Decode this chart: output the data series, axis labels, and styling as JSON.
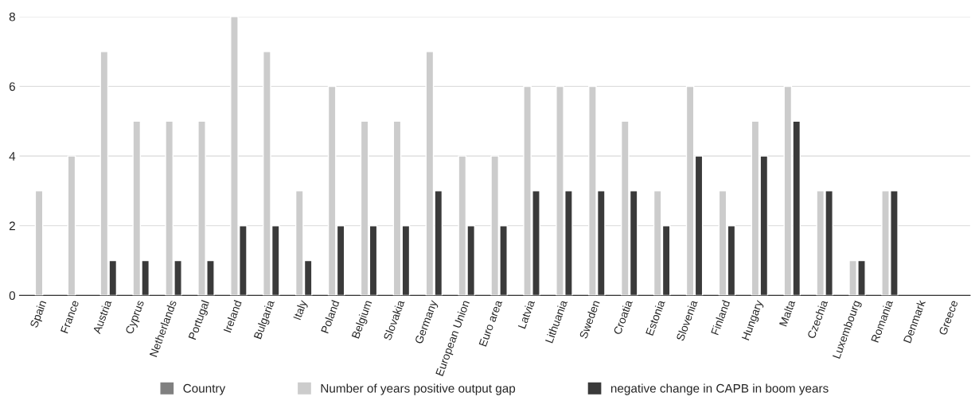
{
  "chart_data": {
    "type": "bar",
    "categories": [
      "Spain",
      "France",
      "Austria",
      "Cyprus",
      "Netherlands",
      "Portugal",
      "Ireland",
      "Bulgaria",
      "Italy",
      "Poland",
      "Belgium",
      "Slovakia",
      "Germany",
      "European Union",
      "Euro area",
      "Latvia",
      "Lithuania",
      "Sweden",
      "Croatia",
      "Estonia",
      "Slovenia",
      "Finland",
      "Hungary",
      "Malta",
      "Czechia",
      "Luxembourg",
      "Romania",
      "Denmark",
      "Greece"
    ],
    "series": [
      {
        "name": "Country",
        "color": "#808080",
        "values": [
          null,
          null,
          null,
          null,
          null,
          null,
          null,
          null,
          null,
          null,
          null,
          null,
          null,
          null,
          null,
          null,
          null,
          null,
          null,
          null,
          null,
          null,
          null,
          null,
          null,
          null,
          null,
          null,
          null
        ]
      },
      {
        "name": "Number of years positive output gap",
        "color": "#cccccc",
        "values": [
          3,
          4,
          7,
          5,
          5,
          5,
          8,
          7,
          3,
          6,
          5,
          5,
          7,
          4,
          4,
          6,
          6,
          6,
          5,
          3,
          6,
          3,
          5,
          6,
          3,
          1,
          3,
          null,
          null
        ]
      },
      {
        "name": "negative change in CAPB in boom years",
        "color": "#3a3a3a",
        "values": [
          null,
          null,
          1,
          1,
          1,
          1,
          2,
          2,
          1,
          2,
          2,
          2,
          3,
          2,
          2,
          3,
          3,
          3,
          3,
          2,
          4,
          2,
          4,
          5,
          3,
          1,
          3,
          null,
          null
        ]
      }
    ],
    "ylim": [
      0,
      8
    ],
    "yticks": [
      0,
      2,
      4,
      6,
      8
    ],
    "grid": "y",
    "legend": "bottom"
  }
}
